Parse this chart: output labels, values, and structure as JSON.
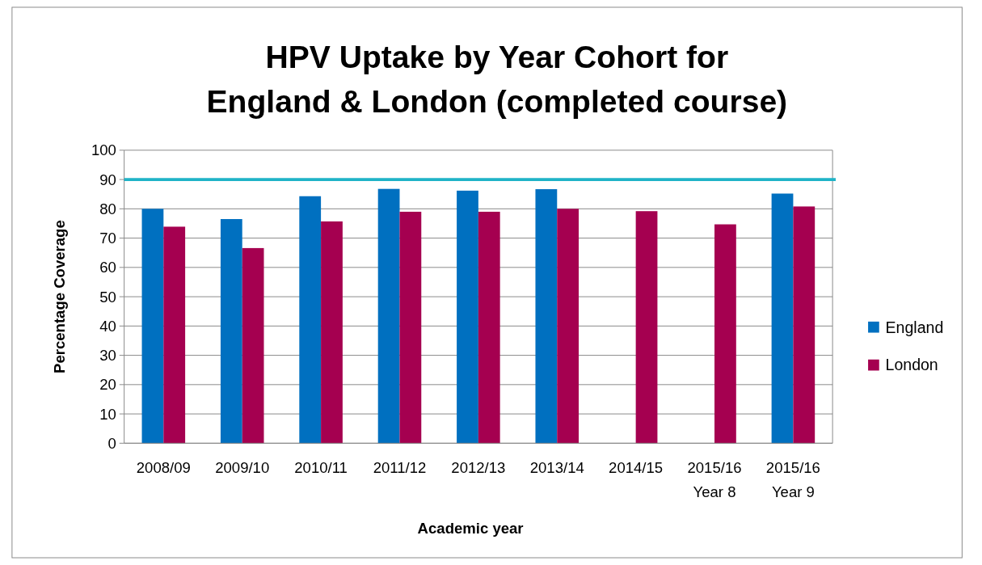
{
  "chart_data": {
    "type": "bar",
    "title": "HPV Uptake by Year Cohort for England & London (completed course)",
    "xlabel": "Academic year",
    "ylabel": "Percentage  Coverage",
    "categories": [
      "2008/09",
      "2009/10",
      "2010/11",
      "2011/12",
      "2012/13",
      "2013/14",
      "2014/15",
      "2015/16\nYear 8",
      "2015/16\nYear 9"
    ],
    "series": [
      {
        "name": "England",
        "color": "#0070c0",
        "values": [
          80,
          76.5,
          84.3,
          86.8,
          86.2,
          86.7,
          null,
          null,
          85.2
        ]
      },
      {
        "name": "London",
        "color": "#a50050",
        "values": [
          73.9,
          66.6,
          75.7,
          79,
          79,
          80,
          79.2,
          74.7,
          80.8
        ]
      }
    ],
    "ylim": [
      0,
      100
    ],
    "yticks": [
      0,
      10,
      20,
      30,
      40,
      50,
      60,
      70,
      80,
      90,
      100
    ],
    "grid": "y",
    "legend": "right",
    "ref_lines": [
      {
        "axis": "y",
        "value": 90,
        "color": "#1fb3c7"
      }
    ]
  }
}
